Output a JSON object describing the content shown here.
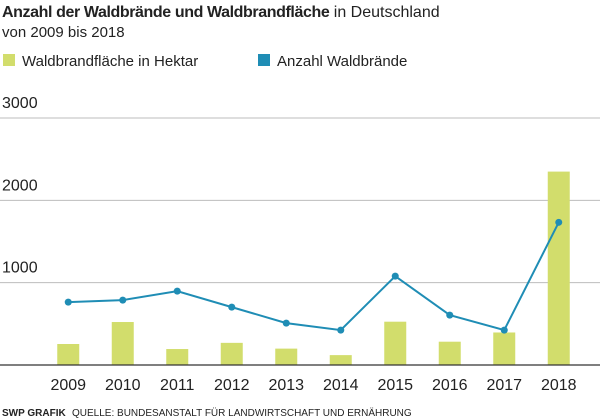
{
  "chart_data": {
    "type": "bar_line",
    "title": "Anzahl der Waldbrände und Waldbrandfläche",
    "title_suffix": "in Deutschland",
    "subtitle": "von 2009 bis 2018",
    "categories": [
      "2009",
      "2010",
      "2011",
      "2012",
      "2013",
      "2014",
      "2015",
      "2016",
      "2017",
      "2018"
    ],
    "series": [
      {
        "name": "Waldbrandfläche in Hektar",
        "type": "bar",
        "color": "#d2dd6c",
        "values": [
          255,
          522,
          194,
          269,
          199,
          120,
          526,
          283,
          395,
          2349
        ]
      },
      {
        "name": "Anzahl Waldbrände",
        "type": "line",
        "color": "#1f8db5",
        "values": [
          764,
          788,
          897,
          703,
          509,
          424,
          1079,
          606,
          424,
          1733
        ]
      }
    ],
    "ylim": [
      0,
      3000
    ],
    "yticks": [
      1000,
      2000,
      3000
    ],
    "grid": true,
    "credit": "SWP GRAFIK",
    "source": "QUELLE: BUNDESANSTALT FÜR LANDWIRTSCHAFT UND ERNÄHRUNG"
  }
}
